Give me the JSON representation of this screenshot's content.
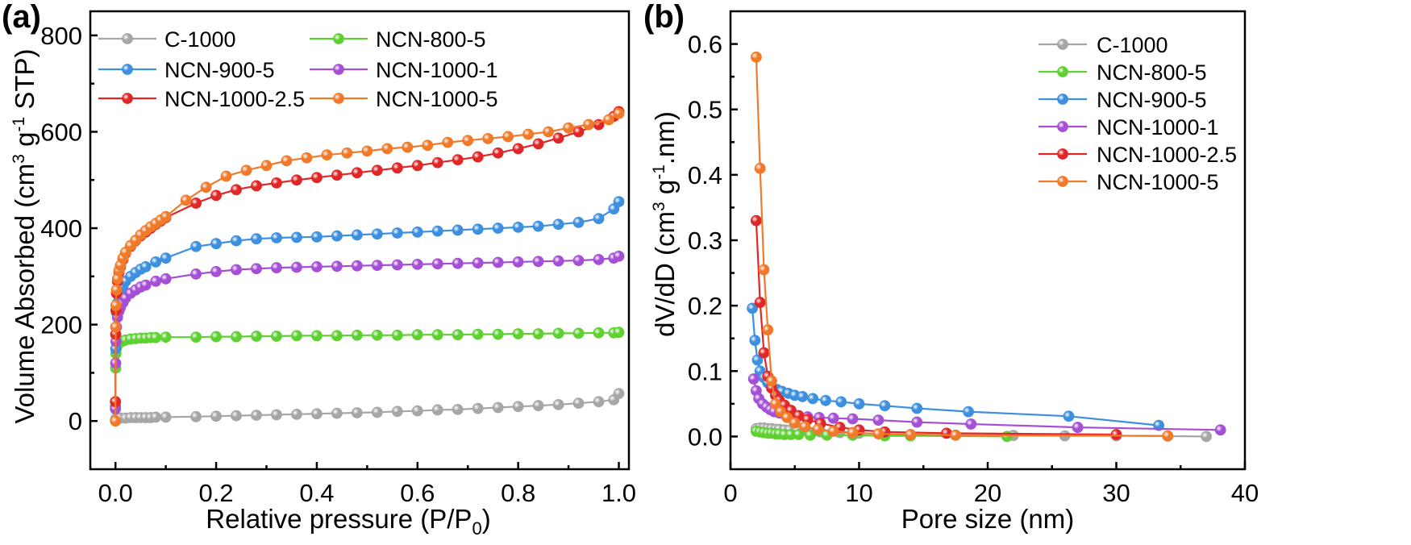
{
  "chart_data": [
    {
      "type": "line",
      "panel_label": "(a)",
      "xlabel_main": "Relative pressure (P/P",
      "xlabel_sub": "0",
      "xlabel_tail": ")",
      "ylabel_pre": "Volume Absorbed (cm",
      "ylabel_sup1": "3",
      "ylabel_mid": " g",
      "ylabel_sup2": "-1",
      "ylabel_post": " STP)",
      "xlim": [
        -0.05,
        1.02
      ],
      "ylim": [
        -100,
        850
      ],
      "xticks": [
        "0.0",
        "0.2",
        "0.4",
        "0.6",
        "0.8",
        "1.0"
      ],
      "yticks": [
        "0",
        "200",
        "400",
        "600",
        "800"
      ],
      "legend_position": "top",
      "series": [
        {
          "name": "C-1000",
          "color": "#a6a6a6",
          "x": [
            0.0,
            0.0005,
            0.001,
            0.002,
            0.004,
            0.007,
            0.01,
            0.02,
            0.03,
            0.04,
            0.05,
            0.06,
            0.07,
            0.08,
            0.1,
            0.16,
            0.2,
            0.24,
            0.28,
            0.32,
            0.36,
            0.4,
            0.44,
            0.48,
            0.52,
            0.56,
            0.6,
            0.64,
            0.68,
            0.72,
            0.76,
            0.8,
            0.84,
            0.88,
            0.92,
            0.96,
            0.99,
            1.0
          ],
          "y": [
            2,
            4,
            5,
            5,
            6,
            6,
            6,
            6,
            7,
            7,
            7,
            7,
            7,
            8,
            8,
            9,
            10,
            11,
            12,
            13,
            14,
            15,
            16,
            17,
            18,
            20,
            21,
            23,
            24,
            26,
            28,
            30,
            32,
            34,
            37,
            40,
            44,
            57
          ]
        },
        {
          "name": "NCN-800-5",
          "color": "#5fd032",
          "x": [
            0.0,
            0.0005,
            0.001,
            0.002,
            0.004,
            0.007,
            0.01,
            0.015,
            0.02,
            0.03,
            0.04,
            0.05,
            0.06,
            0.07,
            0.08,
            0.1,
            0.16,
            0.2,
            0.24,
            0.28,
            0.32,
            0.36,
            0.4,
            0.44,
            0.48,
            0.52,
            0.56,
            0.6,
            0.64,
            0.68,
            0.72,
            0.76,
            0.8,
            0.84,
            0.88,
            0.92,
            0.96,
            0.99,
            1.0
          ],
          "y": [
            40,
            110,
            140,
            152,
            158,
            162,
            164,
            166,
            168,
            170,
            171,
            172,
            172,
            173,
            173,
            174,
            174,
            175,
            175,
            176,
            176,
            177,
            177,
            177,
            178,
            178,
            178,
            179,
            179,
            179,
            180,
            180,
            181,
            181,
            182,
            182,
            183,
            183,
            184
          ]
        },
        {
          "name": "NCN-900-5",
          "color": "#3d8fe0",
          "x": [
            0.0,
            0.0005,
            0.001,
            0.002,
            0.004,
            0.007,
            0.01,
            0.015,
            0.02,
            0.03,
            0.04,
            0.05,
            0.06,
            0.08,
            0.1,
            0.16,
            0.2,
            0.24,
            0.28,
            0.32,
            0.36,
            0.4,
            0.44,
            0.48,
            0.52,
            0.56,
            0.6,
            0.64,
            0.68,
            0.72,
            0.76,
            0.8,
            0.84,
            0.88,
            0.92,
            0.96,
            0.99,
            1.0
          ],
          "y": [
            30,
            150,
            195,
            225,
            245,
            258,
            268,
            280,
            290,
            300,
            308,
            315,
            320,
            330,
            338,
            362,
            368,
            374,
            378,
            380,
            381,
            382,
            384,
            386,
            388,
            390,
            392,
            394,
            396,
            398,
            400,
            402,
            404,
            408,
            412,
            420,
            440,
            455
          ]
        },
        {
          "name": "NCN-1000-1",
          "color": "#a54fd6",
          "x": [
            0.0,
            0.0005,
            0.001,
            0.002,
            0.004,
            0.007,
            0.01,
            0.015,
            0.02,
            0.03,
            0.04,
            0.05,
            0.06,
            0.08,
            0.1,
            0.16,
            0.2,
            0.24,
            0.28,
            0.32,
            0.36,
            0.4,
            0.44,
            0.48,
            0.52,
            0.56,
            0.6,
            0.64,
            0.68,
            0.72,
            0.76,
            0.8,
            0.84,
            0.88,
            0.92,
            0.96,
            0.99,
            1.0
          ],
          "y": [
            25,
            120,
            165,
            195,
            215,
            228,
            236,
            246,
            255,
            265,
            272,
            278,
            282,
            290,
            295,
            305,
            310,
            314,
            316,
            318,
            319,
            320,
            321,
            322,
            323,
            324,
            325,
            326,
            327,
            328,
            329,
            330,
            331,
            332,
            333,
            335,
            338,
            342
          ]
        },
        {
          "name": "NCN-1000-2.5",
          "color": "#e02626",
          "x": [
            0.0,
            0.0005,
            0.001,
            0.002,
            0.004,
            0.007,
            0.01,
            0.015,
            0.02,
            0.03,
            0.04,
            0.05,
            0.06,
            0.07,
            0.08,
            0.09,
            0.1,
            0.16,
            0.2,
            0.24,
            0.28,
            0.32,
            0.36,
            0.4,
            0.44,
            0.48,
            0.52,
            0.56,
            0.6,
            0.64,
            0.68,
            0.72,
            0.76,
            0.8,
            0.84,
            0.88,
            0.92,
            0.96,
            0.99,
            1.0
          ],
          "y": [
            40,
            180,
            230,
            265,
            290,
            308,
            320,
            335,
            348,
            362,
            374,
            384,
            392,
            400,
            408,
            415,
            422,
            452,
            468,
            480,
            488,
            494,
            500,
            505,
            510,
            515,
            520,
            525,
            530,
            536,
            542,
            548,
            556,
            565,
            575,
            587,
            600,
            615,
            632,
            642
          ]
        },
        {
          "name": "NCN-1000-5",
          "color": "#f07a2a",
          "x": [
            0.0,
            0.0005,
            0.001,
            0.002,
            0.004,
            0.007,
            0.01,
            0.015,
            0.02,
            0.03,
            0.04,
            0.05,
            0.06,
            0.07,
            0.08,
            0.09,
            0.1,
            0.14,
            0.18,
            0.22,
            0.26,
            0.3,
            0.34,
            0.38,
            0.42,
            0.46,
            0.5,
            0.54,
            0.58,
            0.62,
            0.66,
            0.7,
            0.74,
            0.78,
            0.82,
            0.86,
            0.9,
            0.94,
            0.98,
            1.0
          ],
          "y": [
            0,
            195,
            240,
            272,
            295,
            312,
            323,
            338,
            350,
            364,
            375,
            386,
            395,
            403,
            410,
            417,
            424,
            458,
            485,
            508,
            520,
            530,
            540,
            546,
            552,
            556,
            560,
            565,
            568,
            572,
            578,
            582,
            586,
            590,
            595,
            600,
            608,
            615,
            625,
            638
          ]
        }
      ]
    },
    {
      "type": "line",
      "panel_label": "(b)",
      "xlabel_main": "Pore size (nm)",
      "ylabel_pre": "dV/dD (cm",
      "ylabel_sup1": "3",
      "ylabel_mid": " g",
      "ylabel_sup2": "-1",
      "ylabel_post": ".nm)",
      "xlim": [
        0,
        40
      ],
      "ylim": [
        -0.05,
        0.65
      ],
      "xticks": [
        "0",
        "10",
        "20",
        "30",
        "40"
      ],
      "yticks": [
        "0.0",
        "0.1",
        "0.2",
        "0.3",
        "0.4",
        "0.5",
        "0.6"
      ],
      "legend_position": "top-right",
      "series": [
        {
          "name": "C-1000",
          "color": "#a6a6a6",
          "x": [
            2.0,
            2.3,
            2.6,
            2.9,
            3.2,
            3.5,
            3.8,
            4.2,
            4.6,
            5.2,
            6.0,
            7.0,
            8.5,
            10.0,
            12.0,
            14.0,
            17.5,
            22.0,
            26.0,
            30.0,
            34.0,
            37.0
          ],
          "y": [
            0.012,
            0.013,
            0.013,
            0.012,
            0.012,
            0.011,
            0.011,
            0.01,
            0.01,
            0.009,
            0.008,
            0.007,
            0.006,
            0.005,
            0.004,
            0.003,
            0.002,
            0.0015,
            0.001,
            0.001,
            0.0005,
            0.0
          ]
        },
        {
          "name": "NCN-800-5",
          "color": "#5fd032",
          "x": [
            2.0,
            2.3,
            2.6,
            2.9,
            3.2,
            3.5,
            3.8,
            4.2,
            4.7,
            5.3,
            6.2,
            7.5,
            9.5,
            12.0,
            14.0,
            21.5
          ],
          "y": [
            0.008,
            0.007,
            0.006,
            0.005,
            0.005,
            0.004,
            0.004,
            0.003,
            0.003,
            0.003,
            0.002,
            0.002,
            0.002,
            0.001,
            0.001,
            0.0
          ]
        },
        {
          "name": "NCN-900-5",
          "color": "#3d8fe0",
          "x": [
            1.7,
            1.9,
            2.1,
            2.3,
            2.6,
            2.9,
            3.2,
            3.6,
            4.0,
            4.5,
            5.0,
            5.6,
            6.4,
            7.4,
            8.6,
            10.0,
            12.0,
            14.5,
            18.5,
            26.3,
            33.3
          ],
          "y": [
            0.196,
            0.147,
            0.117,
            0.1,
            0.09,
            0.082,
            0.076,
            0.072,
            0.069,
            0.066,
            0.063,
            0.061,
            0.058,
            0.055,
            0.053,
            0.05,
            0.047,
            0.043,
            0.038,
            0.031,
            0.017
          ]
        },
        {
          "name": "NCN-1000-1",
          "color": "#a54fd6",
          "x": [
            1.8,
            2.0,
            2.2,
            2.5,
            2.8,
            3.1,
            3.4,
            3.8,
            4.2,
            4.7,
            5.3,
            6.0,
            6.9,
            8.0,
            9.5,
            11.5,
            14.5,
            18.7,
            27.0,
            38.1
          ],
          "y": [
            0.088,
            0.07,
            0.058,
            0.05,
            0.045,
            0.041,
            0.038,
            0.036,
            0.034,
            0.033,
            0.031,
            0.03,
            0.029,
            0.028,
            0.027,
            0.025,
            0.022,
            0.019,
            0.014,
            0.01
          ]
        },
        {
          "name": "NCN-1000-2.5",
          "color": "#e02626",
          "x": [
            2.0,
            2.3,
            2.6,
            2.9,
            3.2,
            3.5,
            3.8,
            4.2,
            4.7,
            5.3,
            6.0,
            7.0,
            8.5,
            10.0,
            12.0,
            16.8,
            30.0
          ],
          "y": [
            0.33,
            0.205,
            0.128,
            0.092,
            0.074,
            0.063,
            0.055,
            0.048,
            0.04,
            0.032,
            0.026,
            0.02,
            0.014,
            0.01,
            0.007,
            0.005,
            0.003
          ]
        },
        {
          "name": "NCN-1000-5",
          "color": "#f07a2a",
          "x": [
            2.0,
            2.3,
            2.6,
            2.9,
            3.2,
            3.5,
            3.9,
            4.4,
            5.0,
            5.8,
            6.8,
            8.0,
            9.5,
            11.5,
            14.0,
            17.5,
            34.0
          ],
          "y": [
            0.58,
            0.41,
            0.255,
            0.163,
            0.085,
            0.05,
            0.038,
            0.029,
            0.021,
            0.015,
            0.011,
            0.008,
            0.006,
            0.004,
            0.003,
            0.002,
            0.001
          ]
        }
      ]
    }
  ]
}
